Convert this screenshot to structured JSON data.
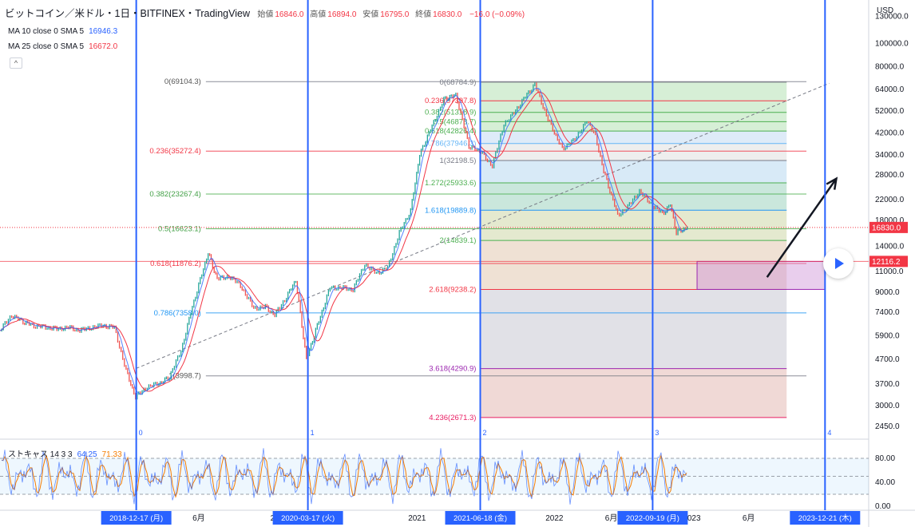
{
  "header": {
    "symbol": "ビットコイン／米ドル・1日・BITFINEX・TradingView",
    "open_label": "始値",
    "open": "16846.0",
    "high_label": "高値",
    "high": "16894.0",
    "low_label": "安値",
    "low": "16795.0",
    "close_label": "終値",
    "close": "16830.0",
    "change": "−16.0 (−0.09%)"
  },
  "indicators": {
    "ma10_label": "MA 10 close 0 SMA 5",
    "ma10_value": "16946.3",
    "ma25_label": "MA 25 close 0 SMA 5",
    "ma25_value": "16672.0",
    "collapse_icon": "^"
  },
  "currency": "USD",
  "stoch_panel": {
    "label": "ストキャス 14 3 3",
    "k": "64.25",
    "d": "71.33"
  },
  "colors": {
    "ma10": "#2962ff",
    "ma25": "#f23645",
    "candle_up": "#26a69a",
    "candle_down": "#ef5350",
    "cycle_line": "#2962ff"
  },
  "chart_data": {
    "type": "line",
    "title": "ビットコイン／米ドル・1日・BITFINEX・TradingView",
    "y_scale": "log",
    "ylim": [
      2200,
      150000
    ],
    "xlim": [
      "2017-12-20",
      "2024-04-15"
    ],
    "x_tick_labels": [
      {
        "label": "6月",
        "date": "2019-06-01"
      },
      {
        "label": "2020",
        "date": "2020-01-01"
      },
      {
        "label": "2021",
        "date": "2021-01-01"
      },
      {
        "label": "2022",
        "date": "2022-01-01"
      },
      {
        "label": "6月",
        "date": "2022-06-01"
      },
      {
        "label": "2023",
        "date": "2023-01-01"
      },
      {
        "label": "6月",
        "date": "2023-06-01"
      }
    ],
    "y_tick_labels": [
      130000,
      100000,
      80000,
      64000,
      52000,
      42000,
      34000,
      28000,
      22000,
      18000,
      14000,
      11000,
      9000,
      7400,
      5900,
      4700,
      3700,
      3000,
      2450
    ],
    "price_tags": [
      {
        "value": 16830.0,
        "label": "16830.0",
        "color": "#f23645"
      },
      {
        "value": 12116.2,
        "label": "12116.2",
        "color": "#f23645"
      }
    ],
    "price_series": [
      [
        "2017-12-20",
        6200
      ],
      [
        "2018-01-20",
        7200
      ],
      [
        "2018-02-15",
        6800
      ],
      [
        "2018-03-20",
        6500
      ],
      [
        "2018-04-20",
        6400
      ],
      [
        "2018-05-20",
        6300
      ],
      [
        "2018-06-20",
        6400
      ],
      [
        "2018-07-20",
        6200
      ],
      [
        "2018-08-20",
        6400
      ],
      [
        "2018-09-20",
        6500
      ],
      [
        "2018-10-20",
        6400
      ],
      [
        "2018-11-20",
        4200
      ],
      [
        "2018-12-15",
        3250
      ],
      [
        "2019-01-15",
        3600
      ],
      [
        "2019-02-15",
        3700
      ],
      [
        "2019-03-15",
        3950
      ],
      [
        "2019-04-15",
        5100
      ],
      [
        "2019-05-15",
        7800
      ],
      [
        "2019-06-26",
        13200
      ],
      [
        "2019-07-20",
        10200
      ],
      [
        "2019-08-20",
        10500
      ],
      [
        "2019-09-20",
        9600
      ],
      [
        "2019-10-25",
        7700
      ],
      [
        "2019-11-25",
        7800
      ],
      [
        "2019-12-20",
        7200
      ],
      [
        "2020-01-20",
        8600
      ],
      [
        "2020-02-14",
        10100
      ],
      [
        "2020-03-13",
        4700
      ],
      [
        "2020-04-15",
        6800
      ],
      [
        "2020-05-15",
        9400
      ],
      [
        "2020-06-15",
        9400
      ],
      [
        "2020-07-15",
        9200
      ],
      [
        "2020-08-15",
        11800
      ],
      [
        "2020-09-15",
        10800
      ],
      [
        "2020-10-15",
        11400
      ],
      [
        "2020-11-15",
        16000
      ],
      [
        "2020-12-15",
        19800
      ],
      [
        "2021-01-08",
        34000
      ],
      [
        "2021-02-10",
        45000
      ],
      [
        "2021-03-13",
        58000
      ],
      [
        "2021-04-14",
        61000
      ],
      [
        "2021-05-19",
        37000
      ],
      [
        "2021-06-20",
        35000
      ],
      [
        "2021-07-20",
        30500
      ],
      [
        "2021-08-20",
        46000
      ],
      [
        "2021-09-07",
        49000
      ],
      [
        "2021-10-20",
        61000
      ],
      [
        "2021-11-10",
        67000
      ],
      [
        "2021-12-15",
        48000
      ],
      [
        "2022-01-22",
        36000
      ],
      [
        "2022-02-20",
        39000
      ],
      [
        "2022-03-28",
        47000
      ],
      [
        "2022-04-20",
        41000
      ],
      [
        "2022-05-12",
        29000
      ],
      [
        "2022-06-18",
        19000
      ],
      [
        "2022-07-15",
        20500
      ],
      [
        "2022-08-15",
        24000
      ],
      [
        "2022-09-10",
        21500
      ],
      [
        "2022-10-15",
        19200
      ],
      [
        "2022-11-05",
        21000
      ],
      [
        "2022-11-21",
        16000
      ],
      [
        "2022-12-20",
        16830
      ]
    ],
    "fib_left": {
      "range": [
        "2018-12-15",
        "2021-06-20"
      ],
      "levels": [
        {
          "label": "0(69104.3)",
          "value": 69104.3
        },
        {
          "label": "0.236(35272.4)",
          "value": 35272.4
        },
        {
          "label": "0.382(23267.4)",
          "value": 23267.4
        },
        {
          "label": "0.5(16623.1)",
          "value": 16623.1
        },
        {
          "label": "0.618(11876.2)",
          "value": 11876.2
        },
        {
          "label": "0.786(7358.0)",
          "value": 7358.0
        },
        {
          "label": "1(3998.7)",
          "value": 3998.7
        }
      ]
    },
    "fib_ext": {
      "range": [
        "2021-06-20",
        "2023-09-10"
      ],
      "levels": [
        {
          "label": "0(68784.9)",
          "value": 68784.9
        },
        {
          "label": "0.236(57397.8)",
          "value": 57397.8
        },
        {
          "label": "0.382(51318.9)",
          "value": 51318.9
        },
        {
          "label": "0.5(46878.7)",
          "value": 46878.7
        },
        {
          "label": "0.618(42826.4)",
          "value": 42826.4
        },
        {
          "label": "0.786(37946.3)",
          "value": 37946.3
        },
        {
          "label": "1(32198.5)",
          "value": 32198.5
        },
        {
          "label": "1.272(25933.6)",
          "value": 25933.6
        },
        {
          "label": "1.618(19889.8)",
          "value": 19889.8
        },
        {
          "label": "2(14839.1)",
          "value": 14839.1
        },
        {
          "label": "2.618(9238.2)",
          "value": 9238.2
        },
        {
          "label": "3.618(4290.9)",
          "value": 4290.9
        },
        {
          "label": "4.236(2671.3)",
          "value": 2671.3
        }
      ]
    },
    "cycle_lines": [
      {
        "number": "0",
        "date": "2018-12-17",
        "label": "2018-12-17 (月)"
      },
      {
        "number": "1",
        "date": "2020-03-17",
        "label": "2020-03-17 (火)"
      },
      {
        "number": "2",
        "date": "2021-06-18",
        "label": "2021-06-18 (金)"
      },
      {
        "number": "3",
        "date": "2022-09-19",
        "label": "2022-09-19 (月)"
      },
      {
        "number": "4",
        "date": "2023-12-21",
        "label": "2023-12-21 (木)"
      }
    ],
    "support_box": {
      "from": "2023-01-15",
      "to": "2023-12-21",
      "low": 9238.2,
      "high": 12116.2
    },
    "trendline": {
      "from": [
        "2018-12-17",
        4300
      ],
      "to": [
        "2024-01-01",
        68000
      ]
    },
    "arrow": {
      "from": [
        "2023-07-20",
        10400
      ],
      "to": [
        "2024-01-20",
        27000
      ]
    },
    "stochastic": {
      "ylim": [
        0,
        100
      ],
      "y_tick_labels": [
        80,
        40,
        0
      ],
      "band": [
        20,
        80
      ],
      "k_last": 64.25,
      "d_last": 71.33
    }
  }
}
